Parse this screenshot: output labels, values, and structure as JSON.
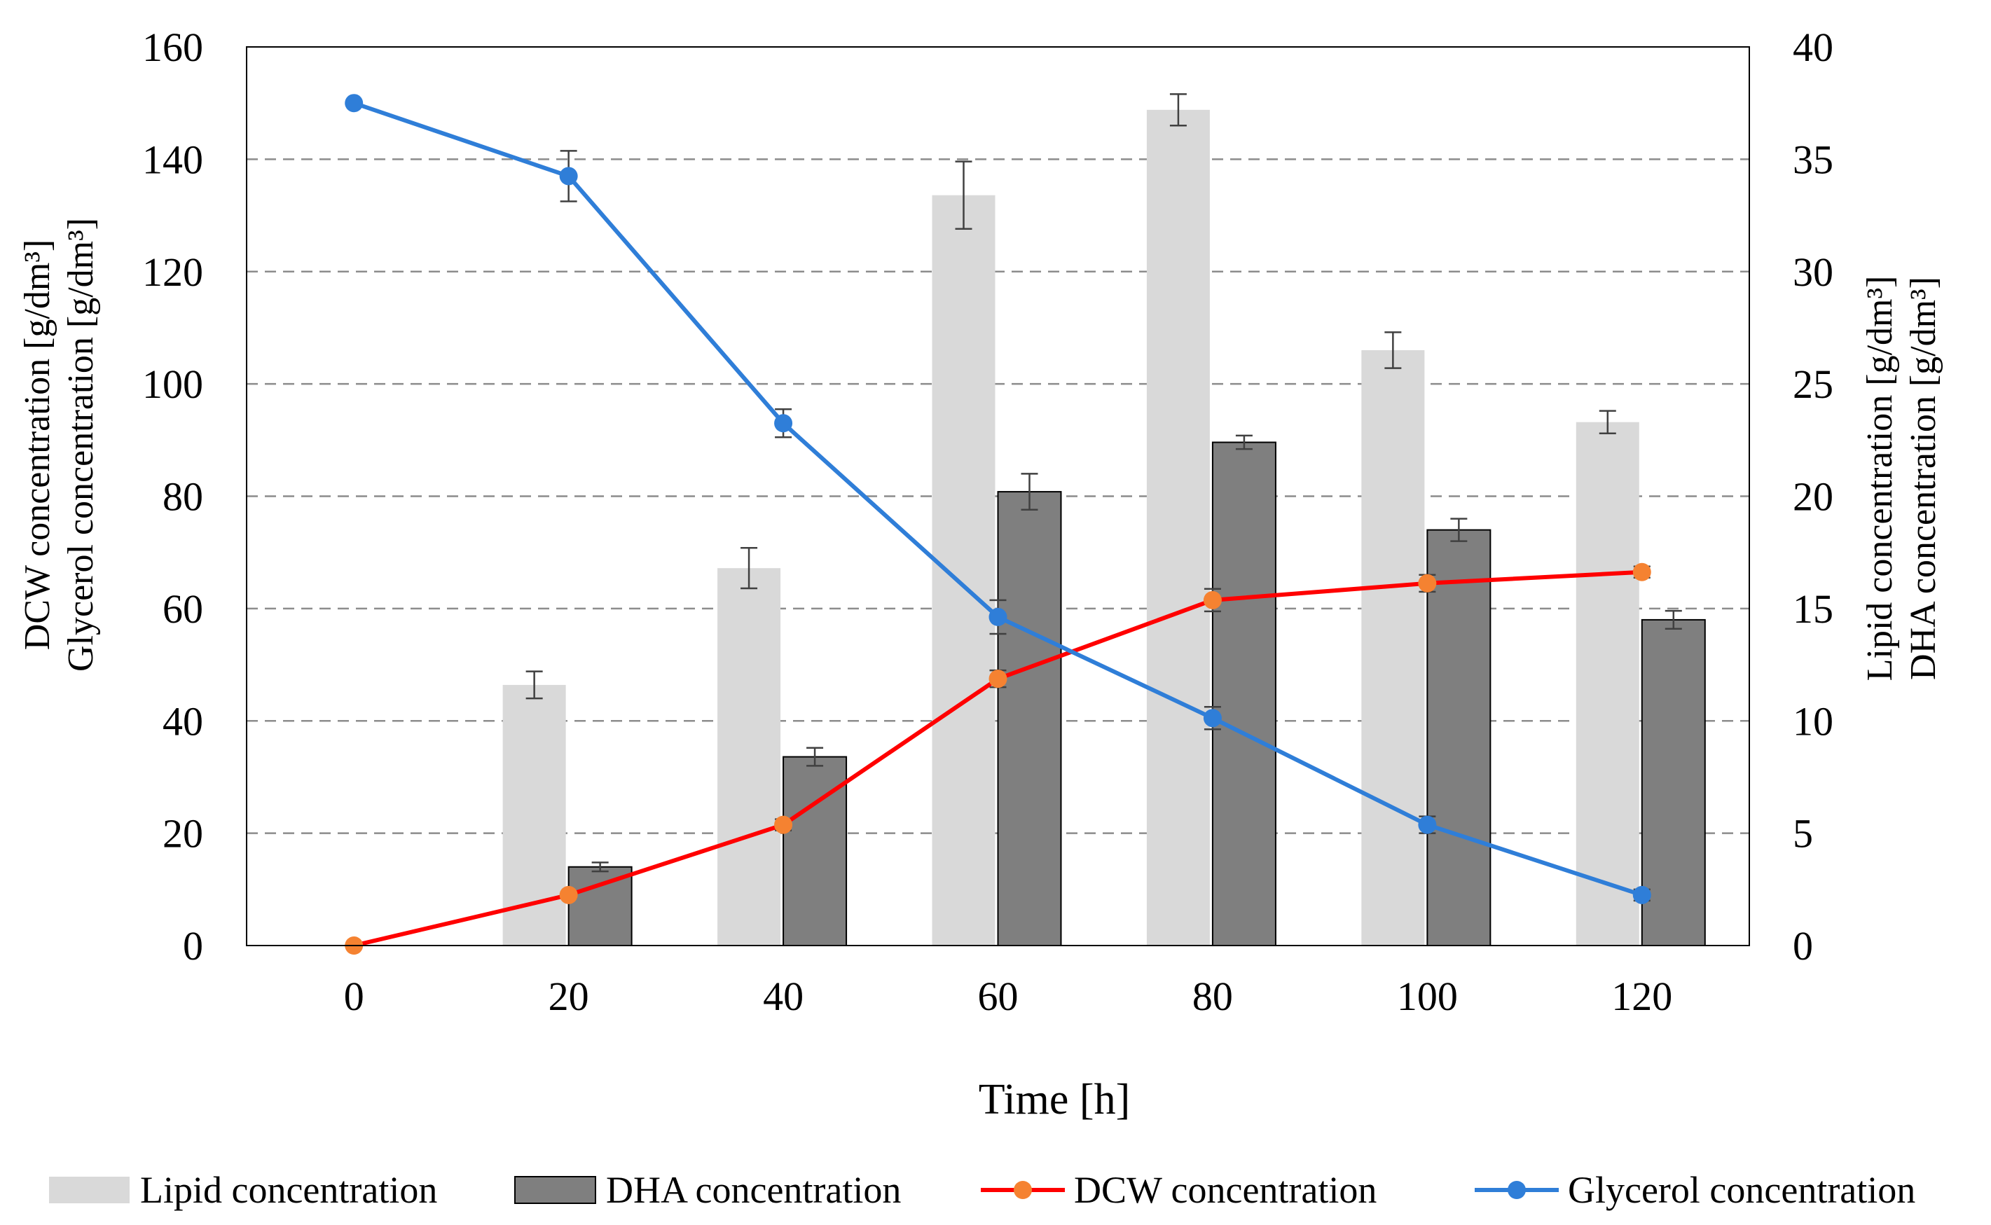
{
  "chart_data": {
    "type": "bar",
    "title": "",
    "xlabel": "Time [h]",
    "ylabel_left": [
      "DCW concentration [g/dm³]",
      "Glycerol concentration [g/dm³]"
    ],
    "ylabel_right": [
      "Lipid concentration [g/dm³]",
      "DHA concentration [g/dm³]"
    ],
    "x": [
      0,
      20,
      40,
      60,
      80,
      100,
      120
    ],
    "x_ticks": [
      "0",
      "20",
      "40",
      "60",
      "80",
      "100",
      "120"
    ],
    "ylim_left": [
      0,
      160
    ],
    "yticks_left": [
      "0",
      "20",
      "40",
      "60",
      "80",
      "100",
      "120",
      "140",
      "160"
    ],
    "ylim_right": [
      0,
      40
    ],
    "yticks_right": [
      "0",
      "5",
      "10",
      "15",
      "20",
      "25",
      "30",
      "35",
      "40"
    ],
    "grid": "horizontal dashed",
    "legend_position": "bottom",
    "series": [
      {
        "name": "Lipid concentration",
        "kind": "bar",
        "axis": "right",
        "color": "#d9d9d9",
        "values": [
          null,
          11.6,
          16.8,
          33.4,
          37.2,
          26.5,
          23.3
        ],
        "errors": [
          null,
          0.6,
          0.9,
          1.5,
          0.7,
          0.8,
          0.5
        ]
      },
      {
        "name": "DHA concentration",
        "kind": "bar",
        "axis": "right",
        "color": "#7f7f7f",
        "values": [
          null,
          3.5,
          8.4,
          20.2,
          22.4,
          18.5,
          14.5
        ],
        "errors": [
          null,
          0.2,
          0.4,
          0.8,
          0.3,
          0.5,
          0.4
        ]
      },
      {
        "name": "DCW concentration",
        "kind": "line",
        "axis": "left",
        "color": "#ff0000",
        "marker_color": "#f58231",
        "values": [
          0,
          9,
          21.5,
          47.5,
          61.5,
          64.5,
          66.5
        ],
        "errors": [
          0,
          0.5,
          1,
          1.5,
          2,
          1.5,
          1
        ]
      },
      {
        "name": "Glycerol concentration",
        "kind": "line",
        "axis": "left",
        "color": "#2f7ed8",
        "values": [
          150,
          137,
          93,
          58.5,
          40.5,
          21.5,
          9
        ],
        "errors": [
          0,
          4.5,
          2.5,
          3,
          2,
          1.5,
          1
        ]
      }
    ]
  }
}
